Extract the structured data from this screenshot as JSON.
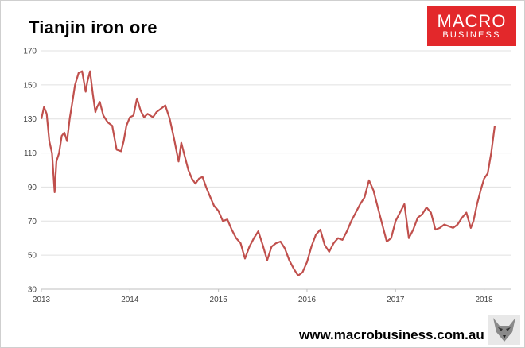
{
  "header": {
    "title": "Tianjin iron ore"
  },
  "logo": {
    "line1": "MACRO",
    "line2": "BUSINESS",
    "color": "#e3282b"
  },
  "footer": {
    "url": "www.macrobusiness.com.au"
  },
  "icons": {
    "mascot": "wolf-icon"
  },
  "chart_data": {
    "type": "line",
    "title": "Tianjin iron ore",
    "xlabel": "",
    "ylabel": "",
    "xlim": [
      2013.0,
      2018.3
    ],
    "ylim": [
      30,
      170
    ],
    "yticks": [
      30,
      50,
      70,
      90,
      110,
      130,
      150,
      170
    ],
    "xticks": [
      {
        "value": 2013,
        "label": "2013"
      },
      {
        "value": 2014,
        "label": "2014"
      },
      {
        "value": 2015,
        "label": "2015"
      },
      {
        "value": 2016,
        "label": "2016"
      },
      {
        "value": 2017,
        "label": "2017"
      },
      {
        "value": 2018,
        "label": "2018"
      }
    ],
    "grid": "horizontal",
    "legend": "none",
    "series": [
      {
        "color": "#c0504d",
        "x": [
          2013.0,
          2013.03,
          2013.06,
          2013.09,
          2013.12,
          2013.15,
          2013.17,
          2013.2,
          2013.23,
          2013.26,
          2013.29,
          2013.32,
          2013.35,
          2013.38,
          2013.42,
          2013.46,
          2013.5,
          2013.52,
          2013.55,
          2013.58,
          2013.61,
          2013.63,
          2013.66,
          2013.7,
          2013.75,
          2013.8,
          2013.85,
          2013.9,
          2013.93,
          2013.96,
          2014.0,
          2014.04,
          2014.08,
          2014.12,
          2014.16,
          2014.2,
          2014.23,
          2014.26,
          2014.3,
          2014.35,
          2014.4,
          2014.45,
          2014.5,
          2014.55,
          2014.58,
          2014.62,
          2014.66,
          2014.7,
          2014.74,
          2014.78,
          2014.82,
          2014.86,
          2014.9,
          2014.95,
          2015.0,
          2015.05,
          2015.1,
          2015.15,
          2015.2,
          2015.25,
          2015.3,
          2015.35,
          2015.4,
          2015.45,
          2015.5,
          2015.55,
          2015.6,
          2015.65,
          2015.7,
          2015.75,
          2015.8,
          2015.85,
          2015.9,
          2015.95,
          2016.0,
          2016.05,
          2016.1,
          2016.15,
          2016.2,
          2016.25,
          2016.3,
          2016.35,
          2016.4,
          2016.45,
          2016.5,
          2016.55,
          2016.6,
          2016.65,
          2016.7,
          2016.75,
          2016.8,
          2016.85,
          2016.9,
          2016.95,
          2017.0,
          2017.05,
          2017.1,
          2017.15,
          2017.2,
          2017.25,
          2017.3,
          2017.35,
          2017.4,
          2017.45,
          2017.5,
          2017.55,
          2017.6,
          2017.65,
          2017.7,
          2017.75,
          2017.8,
          2017.85,
          2017.88,
          2017.92,
          2017.96,
          2018.0,
          2018.04,
          2018.08,
          2018.12
        ],
        "values": [
          130,
          137,
          133,
          117,
          110,
          87,
          105,
          110,
          120,
          122,
          117,
          130,
          140,
          150,
          157,
          158,
          146,
          152,
          158,
          145,
          134,
          137,
          140,
          132,
          128,
          126,
          112,
          111,
          117,
          126,
          131,
          132,
          142,
          135,
          131,
          133,
          132,
          131,
          134,
          136,
          138,
          130,
          118,
          105,
          116,
          108,
          100,
          95,
          92,
          95,
          96,
          90,
          85,
          79,
          76,
          70,
          71,
          65,
          60,
          57,
          48,
          55,
          60,
          64,
          56,
          47,
          55,
          57,
          58,
          54,
          47,
          42,
          38,
          40,
          46,
          55,
          62,
          65,
          56,
          52,
          57,
          60,
          59,
          64,
          70,
          75,
          80,
          84,
          94,
          88,
          78,
          68,
          58,
          60,
          70,
          75,
          80,
          60,
          65,
          72,
          74,
          78,
          75,
          65,
          66,
          68,
          67,
          66,
          68,
          72,
          75,
          66,
          70,
          80,
          88,
          95,
          98,
          110,
          126
        ]
      }
    ]
  }
}
